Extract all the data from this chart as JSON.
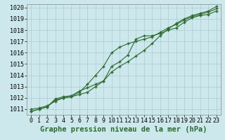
{
  "background_color": "#cce8ec",
  "grid_color": "#aaccd0",
  "line_color": "#2d6a2d",
  "title": "Graphe pression niveau de la mer (hPa)",
  "xlim": [
    -0.5,
    23.5
  ],
  "ylim": [
    1010.5,
    1020.3
  ],
  "yticks": [
    1011,
    1012,
    1013,
    1014,
    1015,
    1016,
    1017,
    1018,
    1019,
    1020
  ],
  "xticks": [
    0,
    1,
    2,
    3,
    4,
    5,
    6,
    7,
    8,
    9,
    10,
    11,
    12,
    13,
    14,
    15,
    16,
    17,
    18,
    19,
    20,
    21,
    22,
    23
  ],
  "series1": {
    "x": [
      0,
      1,
      2,
      3,
      4,
      5,
      6,
      7,
      8,
      9,
      10,
      11,
      12,
      13,
      14,
      15,
      16,
      17,
      18,
      19,
      20,
      21,
      22,
      23
    ],
    "y": [
      1011.0,
      1011.1,
      1011.3,
      1011.7,
      1012.0,
      1012.1,
      1012.3,
      1012.5,
      1013.0,
      1013.5,
      1014.8,
      1015.2,
      1015.8,
      1017.2,
      1017.5,
      1017.5,
      1017.7,
      1018.0,
      1018.2,
      1018.7,
      1019.1,
      1019.3,
      1019.4,
      1019.7
    ]
  },
  "series2": {
    "x": [
      0,
      1,
      2,
      3,
      4,
      5,
      6,
      7,
      8,
      9,
      10,
      11,
      12,
      13,
      14,
      15,
      16,
      17,
      18,
      19,
      20,
      21,
      22,
      23
    ],
    "y": [
      1010.8,
      1011.0,
      1011.2,
      1011.8,
      1012.0,
      1012.1,
      1012.5,
      1013.2,
      1014.0,
      1014.8,
      1016.0,
      1016.5,
      1016.8,
      1017.0,
      1017.2,
      1017.4,
      1017.8,
      1018.2,
      1018.5,
      1018.9,
      1019.2,
      1019.4,
      1019.6,
      1019.9
    ]
  },
  "series3": {
    "x": [
      0,
      1,
      2,
      3,
      4,
      5,
      6,
      7,
      8,
      9,
      10,
      11,
      12,
      13,
      14,
      15,
      16,
      17,
      18,
      19,
      20,
      21,
      22,
      23
    ],
    "y": [
      1010.8,
      1011.0,
      1011.2,
      1011.9,
      1012.1,
      1012.2,
      1012.6,
      1012.9,
      1013.2,
      1013.5,
      1014.3,
      1014.8,
      1015.2,
      1015.7,
      1016.2,
      1016.8,
      1017.5,
      1018.1,
      1018.6,
      1019.0,
      1019.3,
      1019.5,
      1019.7,
      1020.1
    ]
  },
  "title_fontsize": 7.5,
  "tick_fontsize": 6.0
}
